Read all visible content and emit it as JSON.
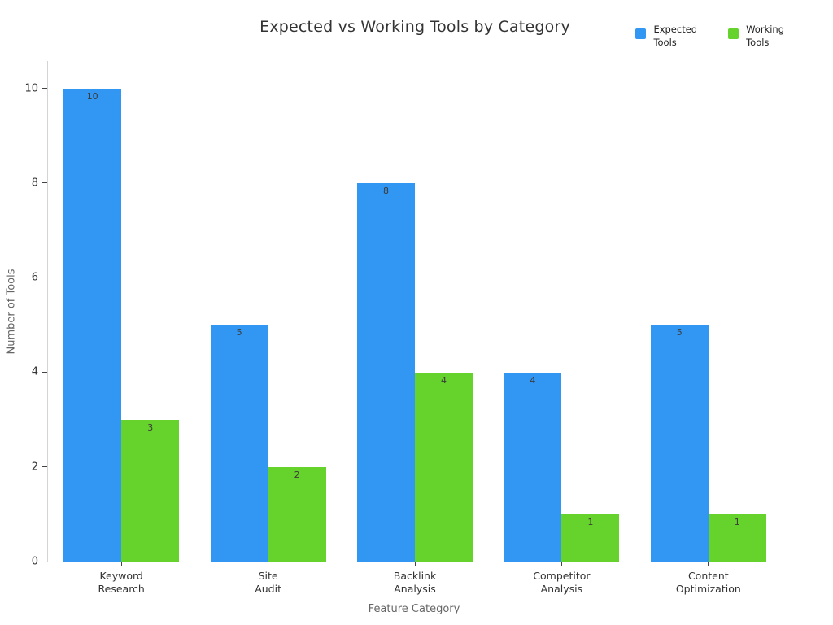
{
  "chart_data": {
    "type": "bar",
    "title": "Expected vs Working Tools by Category",
    "xlabel": "Feature Category",
    "ylabel": "Number of Tools",
    "categories": [
      "Keyword Research",
      "Site Audit",
      "Backlink Analysis",
      "Competitor Analysis",
      "Content Optimization"
    ],
    "series": [
      {
        "name": "Expected Tools",
        "color": "#3296F3",
        "values": [
          10,
          5,
          8,
          4,
          5
        ]
      },
      {
        "name": "Working Tools",
        "color": "#66D22C",
        "values": [
          3,
          2,
          4,
          1,
          1
        ]
      }
    ],
    "ylim": [
      0,
      10.58
    ],
    "yticks": [
      0,
      2,
      4,
      6,
      8,
      10
    ],
    "bar_value_labels": true,
    "legend_position": "top-right",
    "grid": false
  },
  "style": {
    "background": "#ffffff",
    "axis_line_color": "#d4d4d4",
    "tick_mark_color": "#444444",
    "tick_label_color": "#333333",
    "axis_title_color": "#666666",
    "title_color": "#333333",
    "value_label_color": "#3b3b3b"
  }
}
